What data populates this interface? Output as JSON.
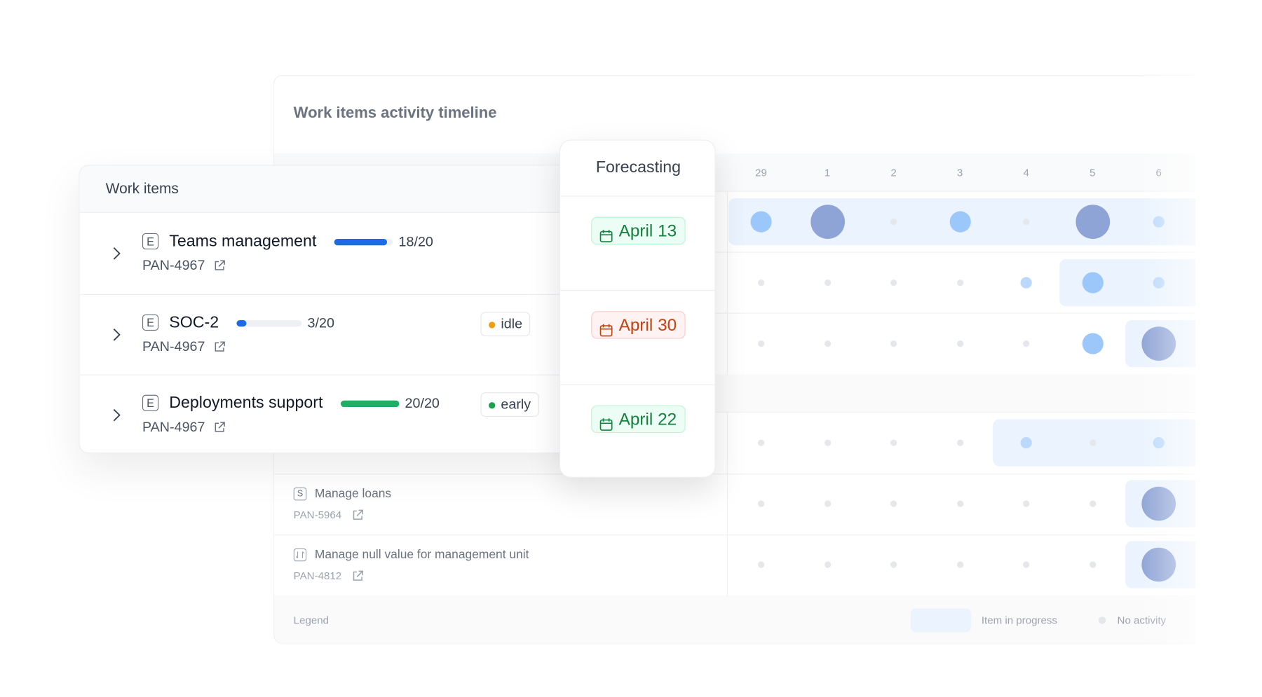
{
  "timeline": {
    "title": "Work items activity timeline",
    "days": [
      "29",
      "1",
      "2",
      "3",
      "4",
      "5",
      "6"
    ],
    "rows": [
      {
        "levels": [
          2,
          3,
          0,
          2,
          0,
          3,
          1
        ],
        "highlight": [
          0,
          6
        ]
      },
      {
        "levels": [
          0,
          0,
          0,
          0,
          1,
          2,
          1
        ],
        "highlight": [
          5,
          6
        ]
      },
      {
        "levels": [
          0,
          0,
          0,
          0,
          0,
          2,
          3
        ],
        "highlight": [
          6,
          6
        ]
      },
      {
        "levels": [
          0,
          0,
          0,
          0,
          1,
          0,
          1
        ],
        "highlight": [
          4,
          6
        ]
      },
      {
        "levels": [
          0,
          0,
          0,
          0,
          0,
          0,
          3
        ],
        "highlight": [
          6,
          6
        ]
      },
      {
        "levels": [
          0,
          0,
          0,
          0,
          0,
          0,
          3
        ],
        "highlight": [
          6,
          6
        ]
      }
    ],
    "background_items": [
      {
        "icon": "S",
        "name": "Manage loans",
        "key": "PAN-5964"
      },
      {
        "name": "Manage null value for management unit",
        "key": "PAN-4812"
      }
    ],
    "legend": {
      "title": "Legend",
      "in_progress": "Item in progress",
      "no_activity": "No activity"
    }
  },
  "work_items": {
    "title": "Work items",
    "items": [
      {
        "icon": "E",
        "name": "Teams management",
        "key": "PAN-4967",
        "progress": {
          "value": 18,
          "max": 20,
          "label": "18/20"
        },
        "color": "#1d6ae5"
      },
      {
        "icon": "E",
        "name": "SOC-2",
        "key": "PAN-4967",
        "progress": {
          "value": 3,
          "max": 20,
          "label": "3/20"
        },
        "color": "#1d6ae5",
        "badge": {
          "label": "idle",
          "color": "#f59e0b"
        }
      },
      {
        "icon": "E",
        "name": "Deployments support",
        "key": "PAN-4967",
        "progress": {
          "value": 20,
          "max": 20,
          "label": "20/20"
        },
        "color": "#1fae64",
        "badge": {
          "label": "early",
          "color": "#16a34a"
        }
      }
    ]
  },
  "forecasting": {
    "title": "Forecasting",
    "dates": [
      {
        "label": "April 13",
        "color": "#15803d"
      },
      {
        "label": "April 30",
        "color": "#c2410c"
      },
      {
        "label": "April 22",
        "color": "#15803d"
      }
    ]
  }
}
